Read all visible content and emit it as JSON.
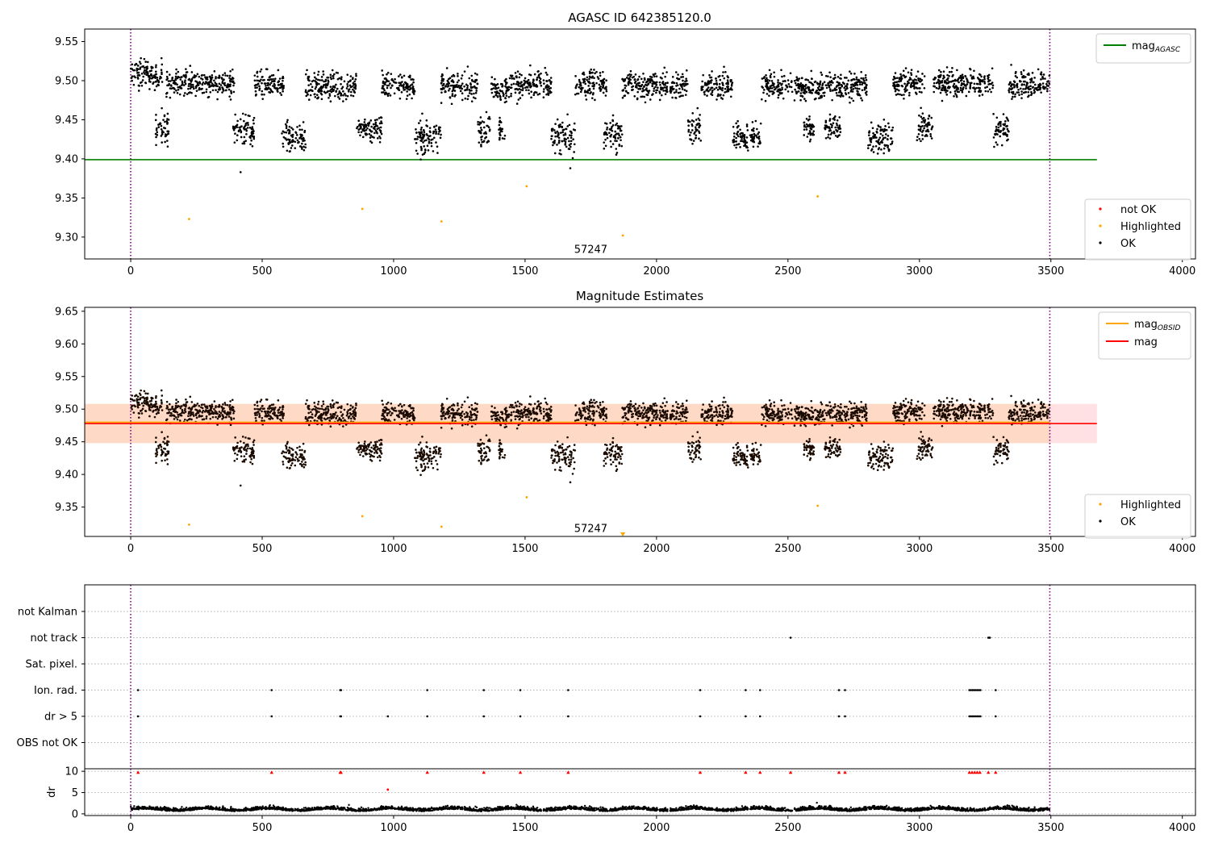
{
  "chart_data": [
    {
      "type": "scatter",
      "title": "AGASC ID 642385120.0",
      "xlim": [
        -175,
        4050
      ],
      "ylim": [
        9.272,
        9.566
      ],
      "xticks": [
        "0",
        "500",
        "1000",
        "1500",
        "2000",
        "2500",
        "3000",
        "3500",
        "4000"
      ],
      "yticks": [
        "9.30",
        "9.35",
        "9.40",
        "9.45",
        "9.50",
        "9.55"
      ],
      "vlines": [
        0,
        3496
      ],
      "hlines": [
        {
          "name": "mag_AGASC",
          "y": 9.399,
          "x_range": [
            -175,
            3675
          ],
          "color": "#008000"
        }
      ],
      "series": [
        {
          "name": "not OK",
          "color": "#ff0000",
          "marker": "dot",
          "values": []
        },
        {
          "name": "Highlighted",
          "color": "#ffa500",
          "marker": "dot",
          "values": [
            [
              222,
              9.323
            ],
            [
              881,
              9.336
            ],
            [
              1182,
              9.32
            ],
            [
              1506,
              9.365
            ],
            [
              1872,
              9.302
            ],
            [
              2613,
              9.352
            ]
          ]
        },
        {
          "name": "OK",
          "color": "#000000",
          "marker": "dot",
          "note": "approximately 3300 dense observations; clusters summarised as [x_start, x_end, y_center, y_spread]",
          "clusters": [
            [
              0,
              120,
              9.508,
              0.012
            ],
            [
              95,
              145,
              9.44,
              0.014
            ],
            [
              135,
              395,
              9.497,
              0.011
            ],
            [
              390,
              470,
              9.436,
              0.013
            ],
            [
              470,
              585,
              9.494,
              0.011
            ],
            [
              575,
              665,
              9.428,
              0.013
            ],
            [
              665,
              860,
              9.493,
              0.011
            ],
            [
              860,
              900,
              9.44,
              0.008
            ],
            [
              900,
              955,
              9.438,
              0.013
            ],
            [
              955,
              1080,
              9.494,
              0.011
            ],
            [
              1080,
              1180,
              9.427,
              0.014
            ],
            [
              1180,
              1320,
              9.493,
              0.012
            ],
            [
              1320,
              1370,
              9.438,
              0.012
            ],
            [
              1370,
              1440,
              9.49,
              0.01
            ],
            [
              1400,
              1425,
              9.438,
              0.01
            ],
            [
              1440,
              1600,
              9.494,
              0.012
            ],
            [
              1600,
              1690,
              9.427,
              0.014
            ],
            [
              1690,
              1810,
              9.496,
              0.012
            ],
            [
              1800,
              1870,
              9.432,
              0.014
            ],
            [
              1870,
              2120,
              9.494,
              0.011
            ],
            [
              2120,
              2170,
              9.44,
              0.013
            ],
            [
              2170,
              2290,
              9.494,
              0.011
            ],
            [
              2290,
              2400,
              9.428,
              0.012
            ],
            [
              2400,
              2560,
              9.493,
              0.011
            ],
            [
              2560,
              2600,
              9.438,
              0.01
            ],
            [
              2560,
              2640,
              9.49,
              0.01
            ],
            [
              2640,
              2700,
              9.44,
              0.01
            ],
            [
              2640,
              2800,
              9.494,
              0.011
            ],
            [
              2800,
              2900,
              9.428,
              0.013
            ],
            [
              2900,
              3020,
              9.496,
              0.011
            ],
            [
              2990,
              3050,
              9.441,
              0.013
            ],
            [
              3050,
              3280,
              9.497,
              0.011
            ],
            [
              3280,
              3340,
              9.437,
              0.013
            ],
            [
              3340,
              3496,
              9.496,
              0.011
            ]
          ],
          "extra": [
            [
              418,
              9.383
            ],
            [
              1672,
              9.388
            ]
          ]
        }
      ],
      "annotations": [
        {
          "text": "57247",
          "x": 1750,
          "y": 9.285
        }
      ]
    },
    {
      "type": "scatter",
      "title": "Magnitude Estimates",
      "xlim": [
        -175,
        4050
      ],
      "ylim": [
        9.305,
        9.656
      ],
      "xticks": [
        "0",
        "500",
        "1000",
        "1500",
        "2000",
        "2500",
        "3000",
        "3500",
        "4000"
      ],
      "yticks": [
        "9.35",
        "9.40",
        "9.45",
        "9.50",
        "9.55",
        "9.60",
        "9.65"
      ],
      "vlines": [
        0,
        3496
      ],
      "bands": [
        {
          "y_range": [
            9.448,
            9.508
          ],
          "x_range": [
            -175,
            3675
          ],
          "color": "#ffe0e3"
        },
        {
          "y_range": [
            9.448,
            9.508
          ],
          "x_range": [
            -175,
            3496
          ],
          "color": "#fdd9c6"
        }
      ],
      "hlines": [
        {
          "name": "mag_OBSID",
          "y": 9.48,
          "x_range": [
            -175,
            3496
          ],
          "color": "#ffa500"
        },
        {
          "name": "mag",
          "y": 9.478,
          "x_range": [
            -175,
            3675
          ],
          "color": "#ff0000"
        }
      ],
      "series": [
        {
          "name": "Highlighted",
          "color": "#ffa500",
          "marker": "dot",
          "values": [
            [
              222,
              9.323
            ],
            [
              881,
              9.336
            ],
            [
              1182,
              9.32
            ],
            [
              1506,
              9.365
            ],
            [
              2613,
              9.352
            ]
          ],
          "out_of_range": [
            [
              1872,
              9.302
            ]
          ]
        },
        {
          "name": "OK",
          "color": "#000000",
          "marker": "dot",
          "same_as_panel": 0
        }
      ],
      "annotations": [
        {
          "text": "57247",
          "x": 1750,
          "y": 9.318
        }
      ]
    },
    {
      "type": "scatter",
      "title": "",
      "xlim": [
        -175,
        4050
      ],
      "ylim": [
        0,
        7
      ],
      "vlines": [
        0,
        3496
      ],
      "yticks": [
        "not Kalman",
        "not track",
        "Sat. pixel.",
        "Ion. rad.",
        "dr > 5",
        "OBS not OK"
      ],
      "flags": {
        "not Kalman": [],
        "not track": [
          2510,
          3262,
          3265,
          3268
        ],
        "Sat. pixel.": [],
        "Ion. rad.": [
          28,
          536,
          797,
          800,
          1128,
          1343,
          1482,
          1664,
          2166,
          2339,
          2394,
          2694,
          2717,
          3190,
          3196,
          3202,
          3208,
          3214,
          3220,
          3226,
          3232,
          3290
        ],
        "dr > 5": [
          28,
          536,
          797,
          800,
          978,
          1128,
          1343,
          1482,
          1664,
          2166,
          2339,
          2394,
          2694,
          2717,
          3190,
          3196,
          3202,
          3208,
          3214,
          3220,
          3226,
          3232,
          3290
        ],
        "OBS not OK": []
      }
    },
    {
      "type": "scatter",
      "title": "",
      "ylabel": "dr",
      "xlim": [
        -175,
        4050
      ],
      "ylim": [
        -0.4,
        10.6
      ],
      "yticks": [
        "0",
        "5",
        "10"
      ],
      "xticks": [
        "0",
        "500",
        "1000",
        "1500",
        "2000",
        "2500",
        "3000",
        "3500",
        "4000"
      ],
      "vlines": [
        0,
        3496
      ],
      "series": [
        {
          "name": "dr",
          "color": "#000000",
          "marker": "dot",
          "baseline": "0 to 2 across all observations",
          "extra": [
            [
              830,
              2.1
            ],
            [
              2610,
              2.6
            ]
          ]
        },
        {
          "name": "clipped dr",
          "color": "#ff0000",
          "marker": "triangle",
          "values": [
            [
              28,
              9.7
            ],
            [
              536,
              9.7
            ],
            [
              797,
              9.7
            ],
            [
              800,
              9.7
            ],
            [
              1128,
              9.7
            ],
            [
              1343,
              9.7
            ],
            [
              1482,
              9.7
            ],
            [
              1664,
              9.7
            ],
            [
              2166,
              9.7
            ],
            [
              2339,
              9.7
            ],
            [
              2394,
              9.7
            ],
            [
              2510,
              9.7
            ],
            [
              2694,
              9.7
            ],
            [
              2717,
              9.7
            ],
            [
              3190,
              9.7
            ],
            [
              3200,
              9.7
            ],
            [
              3210,
              9.7
            ],
            [
              3220,
              9.7
            ],
            [
              3230,
              9.7
            ],
            [
              3262,
              9.7
            ],
            [
              3290,
              9.7
            ]
          ]
        },
        {
          "name": "high dr",
          "color": "#ff0000",
          "marker": "dot",
          "values": [
            [
              978,
              5.7
            ]
          ]
        }
      ]
    }
  ],
  "legends": {
    "top_line": {
      "items": [
        {
          "label": "mag",
          "sub": "AGASC",
          "color": "#008000"
        }
      ],
      "placement": "top-right"
    },
    "top_points": {
      "items": [
        {
          "label": "not OK",
          "color": "#ff0000"
        },
        {
          "label": "Highlighted",
          "color": "#ffa500"
        },
        {
          "label": "OK",
          "color": "#000000"
        }
      ],
      "placement": "bottom-right"
    },
    "mid_line": {
      "items": [
        {
          "label": "mag",
          "sub": "OBSID",
          "color": "#ffa500"
        },
        {
          "label": "mag",
          "sub": "",
          "color": "#ff0000"
        }
      ],
      "placement": "top-right"
    },
    "mid_points": {
      "items": [
        {
          "label": "Highlighted",
          "color": "#ffa500"
        },
        {
          "label": "OK",
          "color": "#000000"
        }
      ],
      "placement": "bottom-right"
    }
  }
}
